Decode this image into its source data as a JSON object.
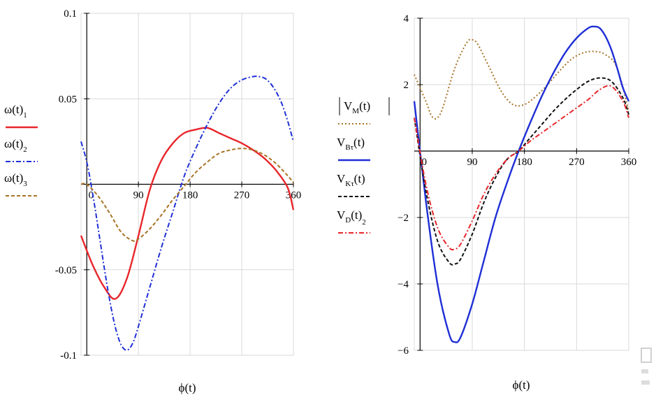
{
  "chart_data": [
    {
      "type": "line",
      "xlabel": "ϕ(t)",
      "ylabel": "",
      "xlim": [
        -10,
        360
      ],
      "ylim": [
        -0.1,
        0.1
      ],
      "xticks": [
        "0",
        "90",
        "180",
        "270",
        "360"
      ],
      "yticks": [
        "0.1",
        "0.05",
        "-0.05",
        "-0.1"
      ],
      "grid": true,
      "legend": "left",
      "series": [
        {
          "name": "ω(t)",
          "sub": "1",
          "color": "#e8262b",
          "dash": "",
          "x": [
            -10,
            10,
            30,
            50,
            70,
            90,
            110,
            130,
            150,
            170,
            190,
            210,
            230,
            250,
            270,
            290,
            310,
            330,
            350,
            360
          ],
          "y": [
            -0.03,
            -0.047,
            -0.06,
            -0.067,
            -0.055,
            -0.03,
            -0.003,
            0.014,
            0.024,
            0.03,
            0.032,
            0.033,
            0.03,
            0.027,
            0.024,
            0.02,
            0.015,
            0.008,
            -0.002,
            -0.015
          ]
        },
        {
          "name": "ω(t)",
          "sub": "2",
          "color": "#1f2fd6",
          "dash": "7,3,2,3",
          "x": [
            -10,
            0,
            10,
            20,
            30,
            40,
            50,
            60,
            70,
            80,
            90,
            110,
            130,
            150,
            170,
            190,
            210,
            230,
            250,
            270,
            290,
            300,
            310,
            320,
            330,
            340,
            350,
            360
          ],
          "y": [
            0.025,
            0.013,
            -0.005,
            -0.026,
            -0.048,
            -0.068,
            -0.084,
            -0.094,
            -0.097,
            -0.093,
            -0.083,
            -0.06,
            -0.037,
            -0.016,
            0.005,
            0.021,
            0.035,
            0.047,
            0.056,
            0.061,
            0.063,
            0.063,
            0.062,
            0.059,
            0.054,
            0.047,
            0.037,
            0.025
          ]
        },
        {
          "name": "ω(t)",
          "sub": "3",
          "color": "#a87326",
          "dash": "5,3",
          "x": [
            -10,
            0,
            20,
            40,
            60,
            80,
            90,
            110,
            130,
            150,
            170,
            190,
            210,
            230,
            250,
            270,
            290,
            310,
            330,
            350,
            360
          ],
          "y": [
            0,
            0,
            -0.007,
            -0.017,
            -0.028,
            -0.033,
            -0.032,
            -0.026,
            -0.018,
            -0.009,
            -0.001,
            0.007,
            0.013,
            0.018,
            0.02,
            0.021,
            0.02,
            0.017,
            0.012,
            0.005,
            0.001
          ]
        }
      ]
    },
    {
      "type": "line",
      "xlabel": "ϕ(t)",
      "ylabel": "",
      "xlim": [
        -10,
        360
      ],
      "ylim": [
        -6,
        4
      ],
      "xticks": [
        "0",
        "90",
        "180",
        "270",
        "360"
      ],
      "yticks": [
        "4",
        "2",
        "−2",
        "−4",
        "−6"
      ],
      "grid": true,
      "legend": "left",
      "series": [
        {
          "name": "V",
          "sub": "M",
          "tail": "(t)",
          "abs": true,
          "color": "#a87326",
          "dash": "2,3",
          "x": [
            -10,
            10,
            20,
            30,
            40,
            60,
            80,
            90,
            100,
            120,
            140,
            160,
            180,
            200,
            220,
            240,
            260,
            280,
            300,
            320,
            340,
            360
          ],
          "y": [
            2.3,
            1.5,
            1.05,
            1.0,
            1.35,
            2.5,
            3.25,
            3.35,
            3.2,
            2.5,
            1.8,
            1.4,
            1.4,
            1.65,
            2.0,
            2.4,
            2.75,
            2.95,
            3.0,
            2.9,
            2.5,
            1.2
          ]
        },
        {
          "name": "V",
          "sub": "Bτ",
          "tail": "(t)",
          "abs": false,
          "color": "#1f2fd6",
          "dash": "",
          "x": [
            -10,
            10,
            30,
            50,
            60,
            70,
            90,
            110,
            130,
            150,
            170,
            190,
            210,
            230,
            250,
            270,
            290,
            300,
            310,
            320,
            330,
            340,
            350,
            360
          ],
          "y": [
            1.5,
            -1.5,
            -4.0,
            -5.5,
            -5.75,
            -5.6,
            -4.6,
            -3.3,
            -2.0,
            -0.95,
            0,
            0.85,
            1.65,
            2.35,
            2.95,
            3.4,
            3.7,
            3.75,
            3.7,
            3.45,
            3.05,
            2.5,
            1.9,
            1.5
          ]
        },
        {
          "name": "V",
          "sub": "Kτ",
          "tail": "(t)",
          "abs": false,
          "color": "#111111",
          "dash": "5,3",
          "x": [
            -10,
            10,
            30,
            50,
            60,
            70,
            90,
            110,
            130,
            150,
            170,
            190,
            210,
            230,
            250,
            270,
            290,
            310,
            330,
            350,
            360
          ],
          "y": [
            1.0,
            -1.2,
            -2.7,
            -3.35,
            -3.4,
            -3.25,
            -2.5,
            -1.55,
            -0.8,
            -0.25,
            0,
            0.4,
            0.8,
            1.2,
            1.55,
            1.85,
            2.1,
            2.2,
            2.1,
            1.6,
            1.1
          ]
        },
        {
          "name": "V",
          "sub": "D",
          "tail": "(t)",
          "sub2": "2",
          "abs": false,
          "color": "#e8262b",
          "dash": "7,3,2,3",
          "x": [
            -10,
            10,
            30,
            50,
            60,
            70,
            90,
            110,
            130,
            150,
            170,
            190,
            210,
            230,
            250,
            270,
            290,
            310,
            330,
            350,
            360
          ],
          "y": [
            1.0,
            -1.0,
            -2.3,
            -2.9,
            -2.95,
            -2.8,
            -2.1,
            -1.3,
            -0.7,
            -0.25,
            0,
            0.3,
            0.55,
            0.8,
            1.05,
            1.3,
            1.55,
            1.85,
            1.95,
            1.5,
            1.0
          ]
        }
      ]
    }
  ]
}
